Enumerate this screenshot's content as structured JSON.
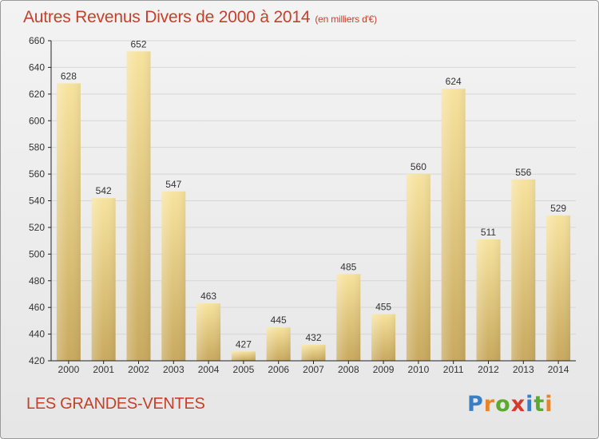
{
  "header": {
    "title": "Autres Revenus Divers de 2000 à 2014",
    "unit": "(en milliers d'€)"
  },
  "footer": {
    "location": "LES GRANDES-VENTES",
    "brand_letters": [
      "P",
      "r",
      "o",
      "x",
      "i",
      "t",
      "i"
    ],
    "brand_colors": [
      "#3a7fc4",
      "#e8842a",
      "#5aaa32",
      "#d63a2a",
      "#3a7fc4",
      "#5aaa32",
      "#e8842a"
    ]
  },
  "colors": {
    "title": "#c4412b",
    "bar_light": "#f7e39e",
    "bar_dark": "#c8a95e",
    "axis": "#222222",
    "grid": "#d6d6d6"
  },
  "chart_data": {
    "type": "bar",
    "title": "Autres Revenus Divers de 2000 à 2014",
    "subtitle": "(en milliers d'€)",
    "xlabel": "",
    "ylabel": "",
    "categories": [
      "2000",
      "2001",
      "2002",
      "2003",
      "2004",
      "2005",
      "2006",
      "2007",
      "2008",
      "2009",
      "2010",
      "2011",
      "2012",
      "2013",
      "2014"
    ],
    "values": [
      628,
      542,
      652,
      547,
      463,
      427,
      445,
      432,
      485,
      455,
      560,
      624,
      511,
      556,
      529
    ],
    "ylim": [
      420,
      660
    ],
    "yticks": [
      420,
      440,
      460,
      480,
      500,
      520,
      540,
      560,
      580,
      600,
      620,
      640,
      660
    ],
    "grid": true,
    "legend": "none"
  }
}
